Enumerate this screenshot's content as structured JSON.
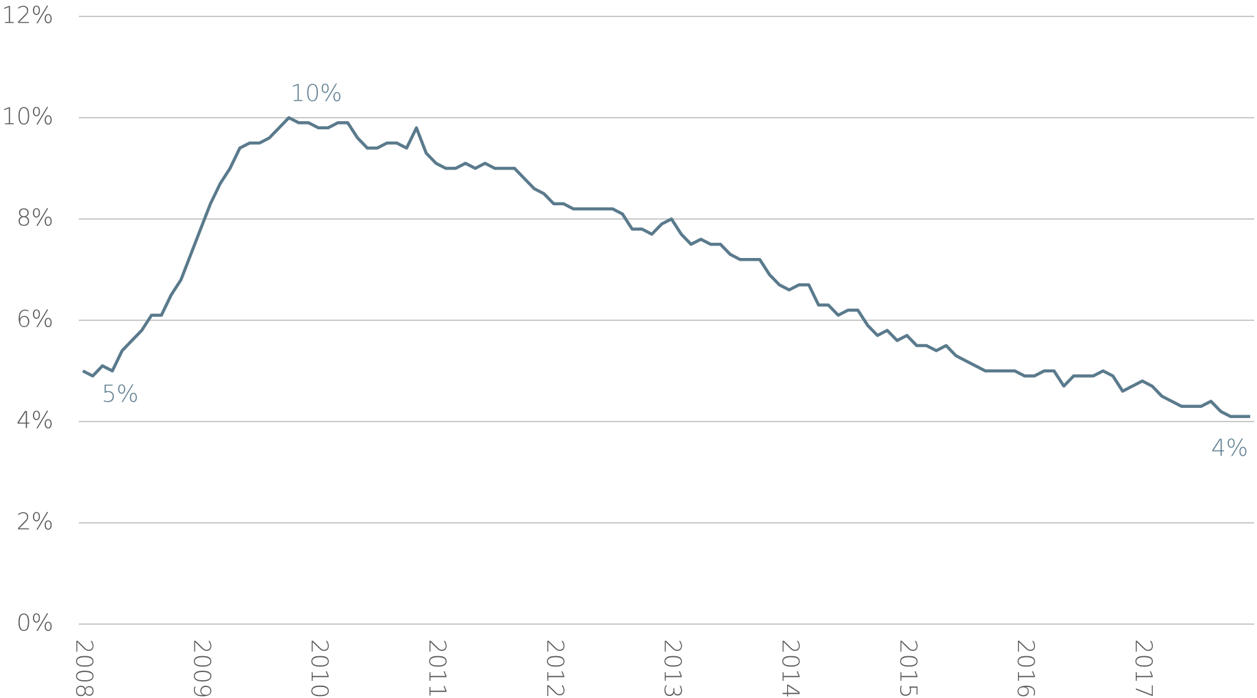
{
  "chart_data": {
    "type": "line",
    "categories": [
      "2008",
      null,
      null,
      null,
      null,
      null,
      null,
      null,
      null,
      null,
      null,
      null,
      "2009",
      null,
      null,
      null,
      null,
      null,
      null,
      null,
      null,
      null,
      null,
      null,
      "2010",
      null,
      null,
      null,
      null,
      null,
      null,
      null,
      null,
      null,
      null,
      null,
      "2011",
      null,
      null,
      null,
      null,
      null,
      null,
      null,
      null,
      null,
      null,
      null,
      "2012",
      null,
      null,
      null,
      null,
      null,
      null,
      null,
      null,
      null,
      null,
      null,
      "2013",
      null,
      null,
      null,
      null,
      null,
      null,
      null,
      null,
      null,
      null,
      null,
      "2014",
      null,
      null,
      null,
      null,
      null,
      null,
      null,
      null,
      null,
      null,
      null,
      "2015",
      null,
      null,
      null,
      null,
      null,
      null,
      null,
      null,
      null,
      null,
      null,
      "2016",
      null,
      null,
      null,
      null,
      null,
      null,
      null,
      null,
      null,
      null,
      null,
      "2017",
      null,
      null,
      null,
      null,
      null,
      null,
      null,
      null,
      null,
      null,
      null
    ],
    "series": [
      {
        "color": "#5a7a8c",
        "values": [
          5.0,
          4.9,
          5.1,
          5.0,
          5.4,
          5.6,
          5.8,
          6.1,
          6.1,
          6.5,
          6.8,
          7.3,
          7.8,
          8.3,
          8.7,
          9.0,
          9.4,
          9.5,
          9.5,
          9.6,
          9.8,
          10.0,
          9.9,
          9.9,
          9.8,
          9.8,
          9.9,
          9.9,
          9.6,
          9.4,
          9.4,
          9.5,
          9.5,
          9.4,
          9.8,
          9.3,
          9.1,
          9.0,
          9.0,
          9.1,
          9.0,
          9.1,
          9.0,
          9.0,
          9.0,
          8.8,
          8.6,
          8.5,
          8.3,
          8.3,
          8.2,
          8.2,
          8.2,
          8.2,
          8.2,
          8.1,
          7.8,
          7.8,
          7.7,
          7.9,
          8.0,
          7.7,
          7.5,
          7.6,
          7.5,
          7.5,
          7.3,
          7.2,
          7.2,
          7.2,
          6.9,
          6.7,
          6.6,
          6.7,
          6.7,
          6.3,
          6.3,
          6.1,
          6.2,
          6.2,
          5.9,
          5.7,
          5.8,
          5.6,
          5.7,
          5.5,
          5.5,
          5.4,
          5.5,
          5.3,
          5.2,
          5.1,
          5.0,
          5.0,
          5.0,
          5.0,
          4.9,
          4.9,
          5.0,
          5.0,
          4.7,
          4.9,
          4.9,
          4.9,
          5.0,
          4.9,
          4.6,
          4.7,
          4.8,
          4.7,
          4.5,
          4.4,
          4.3,
          4.3,
          4.3,
          4.4,
          4.2,
          4.1,
          4.1,
          4.1
        ],
        "value_labels": [
          null,
          "5%",
          null,
          null,
          null,
          null,
          null,
          null,
          null,
          null,
          null,
          null,
          null,
          null,
          null,
          null,
          null,
          null,
          null,
          null,
          null,
          "10%",
          null,
          null,
          null,
          null,
          null,
          null,
          null,
          null,
          null,
          null,
          null,
          null,
          null,
          null,
          null,
          null,
          null,
          null,
          null,
          null,
          null,
          null,
          null,
          null,
          null,
          null,
          null,
          null,
          null,
          null,
          null,
          null,
          null,
          null,
          null,
          null,
          null,
          null,
          null,
          null,
          null,
          null,
          null,
          null,
          null,
          null,
          null,
          null,
          null,
          null,
          null,
          null,
          null,
          null,
          null,
          null,
          null,
          null,
          null,
          null,
          null,
          null,
          null,
          null,
          null,
          null,
          null,
          null,
          null,
          null,
          null,
          null,
          null,
          null,
          null,
          null,
          null,
          null,
          null,
          null,
          null,
          null,
          null,
          null,
          null,
          null,
          null,
          null,
          null,
          null,
          null,
          null,
          null,
          null,
          null,
          null,
          null,
          "4%"
        ]
      }
    ],
    "ylim": [
      0,
      12
    ],
    "yticks": [
      {
        "value": 0,
        "label": "0%"
      },
      {
        "value": 2,
        "label": "2%"
      },
      {
        "value": 4,
        "label": "4%"
      },
      {
        "value": 6,
        "label": "6%"
      },
      {
        "value": 8,
        "label": "8%"
      },
      {
        "value": 10,
        "label": "10%"
      },
      {
        "value": 12,
        "label": "12%"
      }
    ],
    "grid": true
  }
}
